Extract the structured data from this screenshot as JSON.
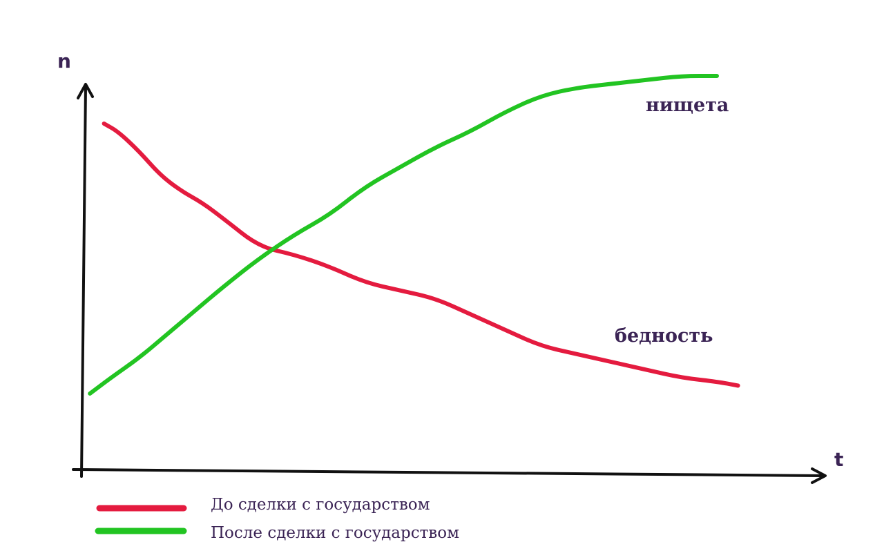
{
  "chart_data": {
    "type": "line",
    "xlabel": "t",
    "ylabel": "n",
    "xlim": [
      0,
      100
    ],
    "ylim": [
      0,
      100
    ],
    "grid": false,
    "legend_placement": "bottom-left",
    "series": [
      {
        "name": "До сделки с государством",
        "label": "бедность",
        "color": "#e41b3f",
        "x": [
          3,
          5,
          8,
          11,
          14,
          17,
          20,
          25,
          30,
          35,
          40,
          45,
          50,
          55,
          60,
          65,
          70,
          75,
          80,
          85,
          90,
          93
        ],
        "y": [
          88,
          86,
          81,
          75,
          71,
          68,
          64,
          57,
          55,
          52,
          48,
          46,
          44,
          40,
          36,
          32,
          30,
          28,
          26,
          24,
          23,
          22
        ]
      },
      {
        "name": "После сделки с государством",
        "label": "нищета",
        "color": "#22c422",
        "x": [
          1,
          4,
          8,
          12,
          16,
          20,
          25,
          30,
          35,
          40,
          45,
          50,
          55,
          60,
          65,
          70,
          75,
          80,
          85,
          90
        ],
        "y": [
          20,
          24,
          29,
          35,
          41,
          47,
          54,
          60,
          65,
          72,
          77,
          82,
          86,
          91,
          95,
          97,
          98,
          99,
          100,
          100
        ]
      }
    ]
  }
}
